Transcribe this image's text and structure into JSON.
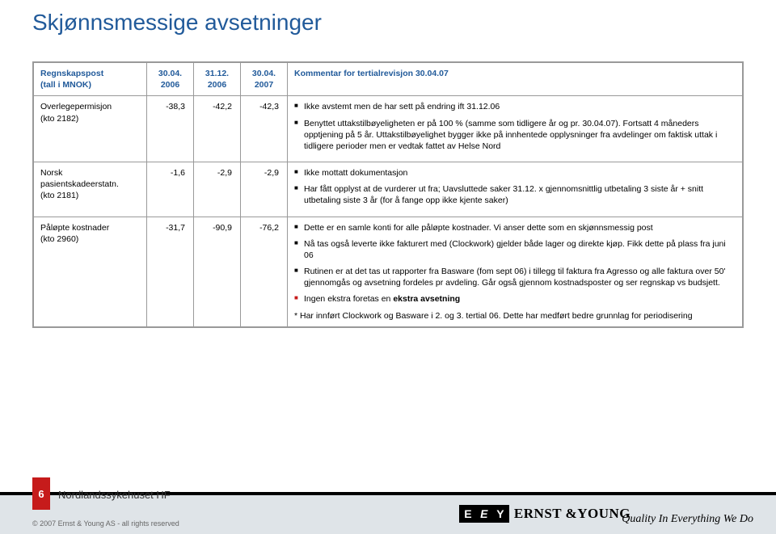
{
  "title": "Skjønnsmessige avsetninger",
  "title_color": "#215a9a",
  "header": {
    "c0a": "Regnskapspost",
    "c0b": "(tall i MNOK)",
    "c1a": "30.04.",
    "c1b": "2006",
    "c2a": "31.12.",
    "c2b": "2006",
    "c3a": "30.04.",
    "c3b": "2007",
    "c4": "Kommentar for tertialrevisjon 30.04.07"
  },
  "rows": [
    {
      "label": "Overlegepermisjon",
      "label2": "(kto 2182)",
      "v1": "-38,3",
      "v2": "-42,2",
      "v3": "-42,3",
      "bullets": [
        "Ikke avstemt men de har sett på endring ift 31.12.06",
        "Benyttet uttakstilbøyeligheten er på 100 % (samme som tidligere år og pr. 30.04.07). Fortsatt 4 måneders opptjening på 5 år. Uttakstilbøyelighet bygger ikke på innhentede opplysninger fra avdelinger om faktisk uttak i tidligere perioder men er vedtak fattet av Helse Nord"
      ]
    },
    {
      "label": "Norsk pasientskadeerstatn.",
      "label2": "(kto 2181)",
      "v1": "-1,6",
      "v2": "-2,9",
      "v3": "-2,9",
      "bullets": [
        "Ikke mottatt dokumentasjon",
        "Har fått opplyst at de vurderer ut fra; Uavsluttede saker 31.12. x gjennomsnittlig utbetaling 3 siste år + snitt utbetaling siste 3 år (for å fange opp ikke kjente saker)"
      ]
    },
    {
      "label": "Påløpte kostnader",
      "label2": "(kto 2960)",
      "v1": "-31,7",
      "v2": "-90,9",
      "v3": "-76,2",
      "bullets": [
        "Dette er en samle konti for alle påløpte kostnader. Vi anser dette som en skjønnsmessig post",
        "Nå tas også leverte ikke fakturert med (Clockwork) gjelder både lager og direkte kjøp. Fikk dette på plass fra juni 06",
        "Rutinen er at det tas ut rapporter fra Basware (fom sept 06) i tillegg til faktura fra Agresso og alle faktura over 50' gjennomgås og avsetning fordeles pr avdeling. Går også gjennom kostnadsposter og ser regnskap vs budsjett.",
        "Ingen ekstra foretas en ekstra avsetning"
      ],
      "red_bullet_index": 3,
      "extra": "* Har innført Clockwork og Basware i 2. og 3. tertial 06. Dette har medført bedre grunnlag for periodisering"
    }
  ],
  "footer": {
    "page": "6",
    "doc": "Nordlandssykehuset HF",
    "copyright": "© 2007 Ernst & Young AS - all rights reserved",
    "ey1": "E",
    "ey2": "E",
    "ey3": "Y",
    "brand1": "ERNST & ",
    "brand2": "YOUNG",
    "tagline": "Quality In Everything We Do"
  },
  "colors": {
    "title": "#215a9a",
    "row_border": "#999999",
    "red": "#c61b1b",
    "footer_bg": "#dfe4e8"
  }
}
